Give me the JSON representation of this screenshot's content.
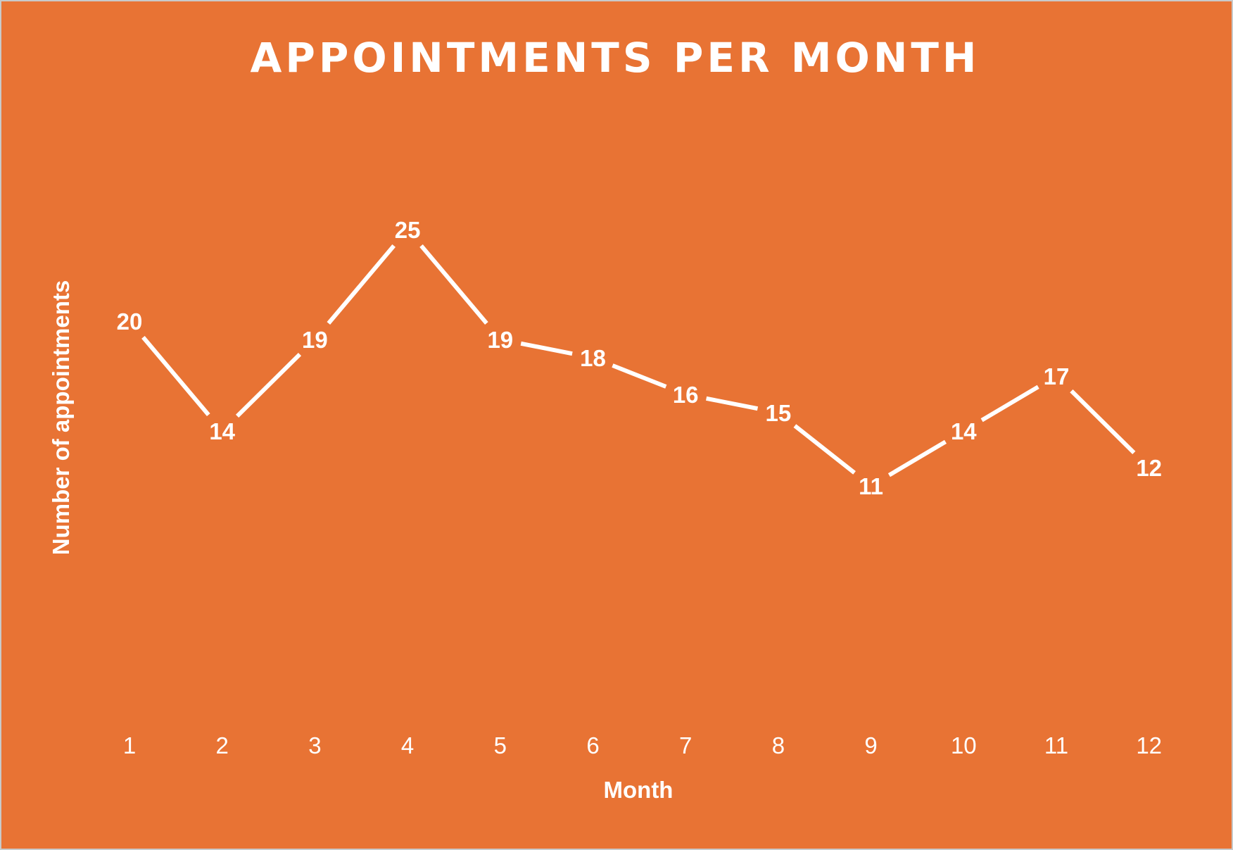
{
  "chart_data": {
    "type": "line",
    "title": "APPOINTMENTS PER MONTH",
    "xlabel": "Month",
    "ylabel": "Number of appointments",
    "categories": [
      "1",
      "2",
      "3",
      "4",
      "5",
      "6",
      "7",
      "8",
      "9",
      "10",
      "11",
      "12"
    ],
    "values": [
      20,
      14,
      19,
      25,
      19,
      18,
      16,
      15,
      11,
      14,
      17,
      12
    ],
    "data_labels": [
      "20",
      "14",
      "19",
      "25",
      "19",
      "18",
      "16",
      "15",
      "11",
      "14",
      "17",
      "12"
    ],
    "ylim": [
      0,
      25
    ],
    "grid": false,
    "legend": "none",
    "drop_lines": true
  },
  "colors": {
    "background": "#E87334",
    "foreground": "#FFFFFF",
    "frame_border": "#C9C9C9"
  }
}
